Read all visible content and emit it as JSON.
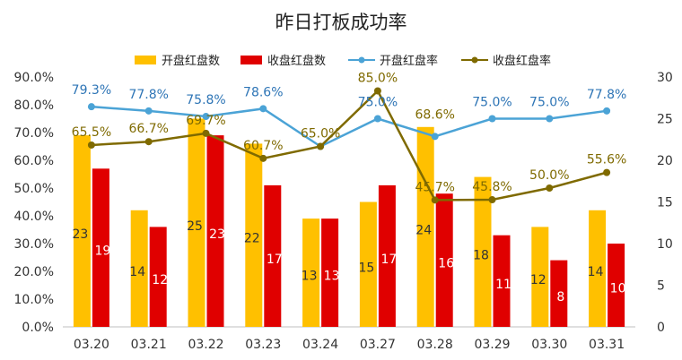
{
  "chart_data": {
    "type": "bar+line",
    "title": "昨日打板成功率",
    "categories": [
      "03.20",
      "03.21",
      "03.22",
      "03.23",
      "03.24",
      "03.27",
      "03.28",
      "03.29",
      "03.30",
      "03.31"
    ],
    "y_left": {
      "ticks": [
        "0.0%",
        "10.0%",
        "20.0%",
        "30.0%",
        "40.0%",
        "50.0%",
        "60.0%",
        "70.0%",
        "80.0%",
        "90.0%"
      ],
      "range": [
        0,
        90
      ]
    },
    "y_right": {
      "ticks": [
        "0",
        "5",
        "10",
        "15",
        "20",
        "25",
        "30"
      ],
      "range": [
        0,
        30
      ]
    },
    "legend_position": "top",
    "grid": false,
    "bar_series": [
      {
        "name": "开盘红盘数",
        "color": "#FFC000",
        "values": [
          23,
          14,
          25,
          22,
          13,
          15,
          24,
          18,
          12,
          14
        ],
        "labels": [
          "23",
          "14",
          "25",
          "22",
          "13",
          "15",
          "24",
          "18",
          "12",
          "14"
        ]
      },
      {
        "name": "收盘红盘数",
        "color": "#E00000",
        "values": [
          19,
          12,
          23,
          17,
          13,
          17,
          16,
          11,
          8,
          10
        ],
        "labels": [
          "19",
          "12",
          "23",
          "17",
          "13",
          "17",
          "16",
          "11",
          "8",
          "10"
        ]
      }
    ],
    "line_series": [
      {
        "name": "开盘红盘率",
        "color": "#4BA3D6",
        "values": [
          79.3,
          77.8,
          75.8,
          78.6,
          65.0,
          75.0,
          68.6,
          75.0,
          75.0,
          77.8
        ],
        "labels": [
          "79.3%",
          "77.8%",
          "75.8%",
          "78.6%",
          "",
          "75.0%",
          "",
          "75.0%",
          "75.0%",
          "77.8%"
        ]
      },
      {
        "name": "收盘红盘率",
        "color": "#7F6A00",
        "values": [
          65.5,
          66.7,
          69.7,
          60.7,
          65.0,
          85.0,
          45.7,
          45.8,
          50.0,
          55.6
        ],
        "labels": [
          "65.5%",
          "66.7%",
          "69.7%",
          "60.7%",
          "65.0%",
          "85.0%",
          "45.7%",
          "45.8%",
          "50.0%",
          "55.6%"
        ]
      }
    ],
    "shared_labels": [
      {
        "index": 6,
        "text": "68.6%",
        "series": "开盘红盘率"
      }
    ]
  }
}
